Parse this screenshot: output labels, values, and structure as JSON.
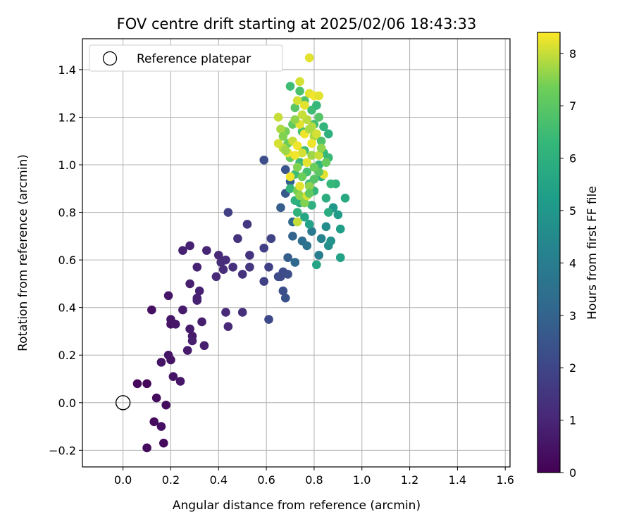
{
  "chart_data": {
    "type": "scatter",
    "title": "FOV centre drift starting at 2025/02/06 18:43:33",
    "xlabel": "Angular distance from reference (arcmin)",
    "ylabel": "Rotation from reference (arcmin)",
    "xlim": [
      -0.17,
      1.62
    ],
    "ylim": [
      -0.27,
      1.53
    ],
    "xticks": [
      0.0,
      0.2,
      0.4,
      0.6,
      0.8,
      1.0,
      1.2,
      1.4,
      1.6
    ],
    "xtick_labels": [
      "0.0",
      "0.2",
      "0.4",
      "0.6",
      "0.8",
      "1.0",
      "1.2",
      "1.4",
      "1.6"
    ],
    "yticks": [
      -0.2,
      0.0,
      0.2,
      0.4,
      0.6,
      0.8,
      1.0,
      1.2,
      1.4
    ],
    "ytick_labels": [
      "−0.2",
      "0.0",
      "0.2",
      "0.4",
      "0.6",
      "0.8",
      "1.0",
      "1.2",
      "1.4"
    ],
    "grid": true,
    "legend": {
      "placement": "upper-left",
      "entries": [
        {
          "label": "Reference platepar",
          "marker": "open-circle",
          "x": 0.0,
          "y": 0.0
        }
      ]
    },
    "colorbar": {
      "label": "Hours from first FF file",
      "colormap": "viridis",
      "range": [
        0,
        8.4
      ],
      "ticks": [
        0,
        1,
        2,
        3,
        4,
        5,
        6,
        7,
        8
      ],
      "tick_labels": [
        "0",
        "1",
        "2",
        "3",
        "4",
        "5",
        "6",
        "7",
        "8"
      ]
    },
    "points": [
      [
        0.1,
        -0.19,
        0.3
      ],
      [
        0.17,
        -0.17,
        0.3
      ],
      [
        0.13,
        -0.08,
        0.3
      ],
      [
        0.16,
        -0.1,
        0.4
      ],
      [
        0.14,
        0.02,
        0.3
      ],
      [
        0.18,
        -0.01,
        0.3
      ],
      [
        0.06,
        0.08,
        0.2
      ],
      [
        0.1,
        0.08,
        0.2
      ],
      [
        0.16,
        0.17,
        0.5
      ],
      [
        0.19,
        0.2,
        0.5
      ],
      [
        0.2,
        0.18,
        0.5
      ],
      [
        0.21,
        0.11,
        0.5
      ],
      [
        0.24,
        0.09,
        0.6
      ],
      [
        0.12,
        0.39,
        0.4
      ],
      [
        0.19,
        0.45,
        0.6
      ],
      [
        0.2,
        0.33,
        0.5
      ],
      [
        0.2,
        0.35,
        0.6
      ],
      [
        0.22,
        0.33,
        0.6
      ],
      [
        0.25,
        0.39,
        0.7
      ],
      [
        0.27,
        0.22,
        0.7
      ],
      [
        0.28,
        0.31,
        0.7
      ],
      [
        0.29,
        0.28,
        0.7
      ],
      [
        0.29,
        0.26,
        0.8
      ],
      [
        0.34,
        0.24,
        0.8
      ],
      [
        0.33,
        0.34,
        0.8
      ],
      [
        0.31,
        0.43,
        0.9
      ],
      [
        0.32,
        0.47,
        0.9
      ],
      [
        0.31,
        0.44,
        0.9
      ],
      [
        0.28,
        0.5,
        0.8
      ],
      [
        0.31,
        0.57,
        0.9
      ],
      [
        0.25,
        0.64,
        0.9
      ],
      [
        0.28,
        0.66,
        0.9
      ],
      [
        0.35,
        0.64,
        1.0
      ],
      [
        0.39,
        0.53,
        1.1
      ],
      [
        0.4,
        0.62,
        1.1
      ],
      [
        0.41,
        0.59,
        1.2
      ],
      [
        0.42,
        0.56,
        1.2
      ],
      [
        0.43,
        0.6,
        1.2
      ],
      [
        0.43,
        0.38,
        1.1
      ],
      [
        0.44,
        0.32,
        1.1
      ],
      [
        0.46,
        0.57,
        1.3
      ],
      [
        0.5,
        0.54,
        1.4
      ],
      [
        0.5,
        0.38,
        1.3
      ],
      [
        0.48,
        0.69,
        1.4
      ],
      [
        0.52,
        0.75,
        1.5
      ],
      [
        0.53,
        0.62,
        1.4
      ],
      [
        0.53,
        0.57,
        1.5
      ],
      [
        0.44,
        0.8,
        1.8
      ],
      [
        0.59,
        0.51,
        1.8
      ],
      [
        0.59,
        0.65,
        1.8
      ],
      [
        0.61,
        0.57,
        1.8
      ],
      [
        0.62,
        0.69,
        1.9
      ],
      [
        0.61,
        0.35,
        2.1
      ],
      [
        0.59,
        1.02,
        2.3
      ],
      [
        0.65,
        0.53,
        2.1
      ],
      [
        0.66,
        0.53,
        2.2
      ],
      [
        0.67,
        0.47,
        2.3
      ],
      [
        0.68,
        0.44,
        2.4
      ],
      [
        0.67,
        0.55,
        2.2
      ],
      [
        0.69,
        0.54,
        2.3
      ],
      [
        0.69,
        0.61,
        2.8
      ],
      [
        0.72,
        0.59,
        3.2
      ],
      [
        0.71,
        0.7,
        3.0
      ],
      [
        0.66,
        0.82,
        2.8
      ],
      [
        0.68,
        0.88,
        2.6
      ],
      [
        0.68,
        0.98,
        2.5
      ],
      [
        0.7,
        0.93,
        2.9
      ],
      [
        0.71,
        0.76,
        3.2
      ],
      [
        0.75,
        0.68,
        3.4
      ],
      [
        0.77,
        0.66,
        3.6
      ],
      [
        0.79,
        0.72,
        3.8
      ],
      [
        0.82,
        0.62,
        4.0
      ],
      [
        0.83,
        0.69,
        4.2
      ],
      [
        0.85,
        0.74,
        4.6
      ],
      [
        0.86,
        0.66,
        4.7
      ],
      [
        0.87,
        0.68,
        4.8
      ],
      [
        0.88,
        0.82,
        5.0
      ],
      [
        0.9,
        0.79,
        5.2
      ],
      [
        0.91,
        0.73,
        5.3
      ],
      [
        0.91,
        0.61,
        5.4
      ],
      [
        0.81,
        0.58,
        5.5
      ],
      [
        0.93,
        0.86,
        5.7
      ],
      [
        0.85,
        0.86,
        5.9
      ],
      [
        0.89,
        0.92,
        6.1
      ],
      [
        0.86,
        0.8,
        5.8
      ],
      [
        0.83,
        0.95,
        6.0
      ],
      [
        0.82,
        1.0,
        6.2
      ],
      [
        0.86,
        1.13,
        6.0
      ],
      [
        0.84,
        1.16,
        6.2
      ],
      [
        0.84,
        1.05,
        6.3
      ],
      [
        0.86,
        1.03,
        6.4
      ],
      [
        0.87,
        0.92,
        6.3
      ],
      [
        0.76,
        0.78,
        5.6
      ],
      [
        0.78,
        0.75,
        5.4
      ],
      [
        0.74,
        0.84,
        5.8
      ],
      [
        0.72,
        0.85,
        6.0
      ],
      [
        0.73,
        0.8,
        6.1
      ],
      [
        0.7,
        0.9,
        6.3
      ],
      [
        0.72,
        0.96,
        6.5
      ],
      [
        0.74,
        1.01,
        6.4
      ],
      [
        0.76,
        1.06,
        6.5
      ],
      [
        0.78,
        0.92,
        6.4
      ],
      [
        0.8,
        0.89,
        6.2
      ],
      [
        0.79,
        0.83,
        6.0
      ],
      [
        0.77,
        0.97,
        6.6
      ],
      [
        0.75,
        1.14,
        6.7
      ],
      [
        0.79,
        1.23,
        6.5
      ],
      [
        0.81,
        1.25,
        6.3
      ],
      [
        0.8,
        1.17,
        6.6
      ],
      [
        0.83,
        1.1,
        6.8
      ],
      [
        0.82,
        1.2,
        6.9
      ],
      [
        0.76,
        1.27,
        6.8
      ],
      [
        0.74,
        1.31,
        6.7
      ],
      [
        0.7,
        1.33,
        6.5
      ],
      [
        0.72,
        1.24,
        7.0
      ],
      [
        0.71,
        1.17,
        7.1
      ],
      [
        0.69,
        1.09,
        7.3
      ],
      [
        0.68,
        1.14,
        7.4
      ],
      [
        0.7,
        1.03,
        7.2
      ],
      [
        0.73,
        0.99,
        7.5
      ],
      [
        0.75,
        0.95,
        7.3
      ],
      [
        0.73,
        0.89,
        7.4
      ],
      [
        0.74,
        0.87,
        7.6
      ],
      [
        0.76,
        0.84,
        7.5
      ],
      [
        0.78,
        0.91,
        7.6
      ],
      [
        0.79,
        1.04,
        7.7
      ],
      [
        0.8,
        1.12,
        7.8
      ],
      [
        0.77,
        1.19,
        7.9
      ],
      [
        0.75,
        1.21,
        8.0
      ],
      [
        0.73,
        1.27,
        8.1
      ],
      [
        0.78,
        1.3,
        8.2
      ],
      [
        0.8,
        1.29,
        8.3
      ],
      [
        0.82,
        1.29,
        8.2
      ],
      [
        0.74,
        1.35,
        8.1
      ],
      [
        0.78,
        1.45,
        8.2
      ],
      [
        0.65,
        1.2,
        8.0
      ],
      [
        0.66,
        1.15,
        7.8
      ],
      [
        0.67,
        1.07,
        7.9
      ],
      [
        0.65,
        1.09,
        8.1
      ],
      [
        0.69,
        1.05,
        8.2
      ],
      [
        0.71,
        1.1,
        8.0
      ],
      [
        0.73,
        1.08,
        8.3
      ],
      [
        0.75,
        1.05,
        8.1
      ],
      [
        0.77,
        1.01,
        8.2
      ],
      [
        0.79,
        1.09,
        8.3
      ],
      [
        0.81,
        1.13,
        8.1
      ],
      [
        0.82,
        1.04,
        8.0
      ],
      [
        0.76,
        1.13,
        8.3
      ],
      [
        0.74,
        1.17,
        8.2
      ],
      [
        0.72,
        1.04,
        8.3
      ],
      [
        0.7,
        0.95,
        8.3
      ],
      [
        0.74,
        0.91,
        8.2
      ],
      [
        0.77,
        0.87,
        8.1
      ],
      [
        0.73,
        0.76,
        8.0
      ],
      [
        0.76,
        1.25,
        8.2
      ],
      [
        0.84,
        0.96,
        8.2
      ],
      [
        0.79,
        1.16,
        7.9
      ],
      [
        0.83,
        1.07,
        7.6
      ],
      [
        0.85,
        1.01,
        7.2
      ],
      [
        0.82,
        0.97,
        7.0
      ],
      [
        0.8,
        0.94,
        6.9
      ],
      [
        0.78,
        0.88,
        7.1
      ],
      [
        0.8,
        0.99,
        7.3
      ],
      [
        0.78,
        1.15,
        7.8
      ],
      [
        0.72,
        1.19,
        7.6
      ],
      [
        0.68,
        1.06,
        7.7
      ],
      [
        0.67,
        1.12,
        7.5
      ]
    ]
  }
}
